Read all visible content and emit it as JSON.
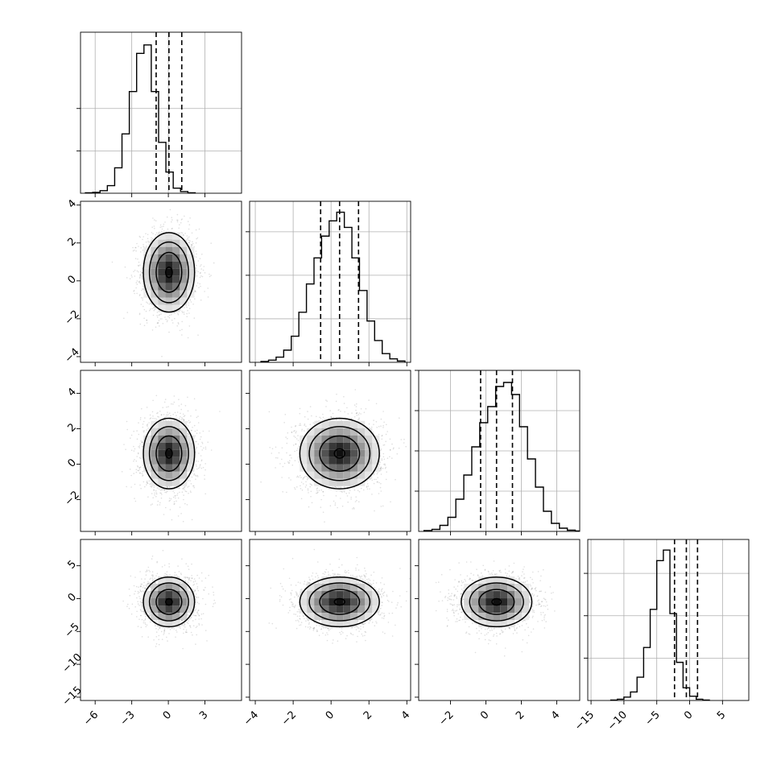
{
  "chart_data": {
    "type": "corner",
    "n_params": 4,
    "params": [
      {
        "range": [
          -7.2,
          6.0
        ],
        "ticks": [
          -6,
          -3,
          0,
          3
        ],
        "hist_edges_start": -6.8,
        "hist_bin_width": 0.6,
        "hist_counts": [
          1,
          2,
          6,
          18,
          60,
          140,
          240,
          330,
          350,
          240,
          120,
          50,
          12,
          4,
          1
        ],
        "hist_ylim": [
          0,
          380
        ],
        "hist_gridlines": [
          100,
          200
        ],
        "quantiles": [
          -1.0,
          0.05,
          1.1
        ],
        "mean": 0.05,
        "sd": 1.0
      },
      {
        "range": [
          -4.3,
          4.2
        ],
        "ticks": [
          -4,
          -2,
          0,
          2,
          4
        ],
        "hist_edges_start": -3.7,
        "hist_bin_width": 0.4,
        "hist_counts": [
          2,
          5,
          12,
          28,
          60,
          115,
          180,
          240,
          290,
          325,
          345,
          310,
          240,
          165,
          95,
          50,
          20,
          8,
          3
        ],
        "hist_ylim": [
          0,
          370
        ],
        "hist_gridlines": [
          100,
          200,
          300
        ],
        "quantiles": [
          -0.55,
          0.45,
          1.45
        ],
        "mean": 0.45,
        "sd": 1.0
      },
      {
        "range": [
          -3.8,
          5.3
        ],
        "ticks": [
          -2,
          0,
          2,
          4
        ],
        "hist_edges_start": -3.5,
        "hist_bin_width": 0.45,
        "hist_counts": [
          2,
          5,
          15,
          35,
          80,
          140,
          210,
          270,
          310,
          360,
          370,
          340,
          260,
          180,
          110,
          50,
          20,
          8,
          3,
          1
        ],
        "hist_ylim": [
          0,
          400
        ],
        "hist_gridlines": [
          100,
          200,
          300,
          400
        ],
        "quantiles": [
          -0.3,
          0.6,
          1.5
        ],
        "mean": 0.6,
        "sd": 0.95
      },
      {
        "range": [
          -15.5,
          9.0
        ],
        "ticks": [
          -15,
          -10,
          -5,
          0,
          5
        ],
        "hist_edges_start": -12.0,
        "hist_bin_width": 1.0,
        "hist_counts": [
          1,
          3,
          8,
          20,
          55,
          125,
          215,
          330,
          355,
          205,
          90,
          30,
          10,
          3,
          1
        ],
        "hist_ylim": [
          0,
          380
        ],
        "hist_gridlines": [
          100,
          200,
          300
        ],
        "quantiles": [
          -2.3,
          -0.5,
          1.2
        ],
        "mean": -0.5,
        "sd": 1.8
      }
    ]
  }
}
